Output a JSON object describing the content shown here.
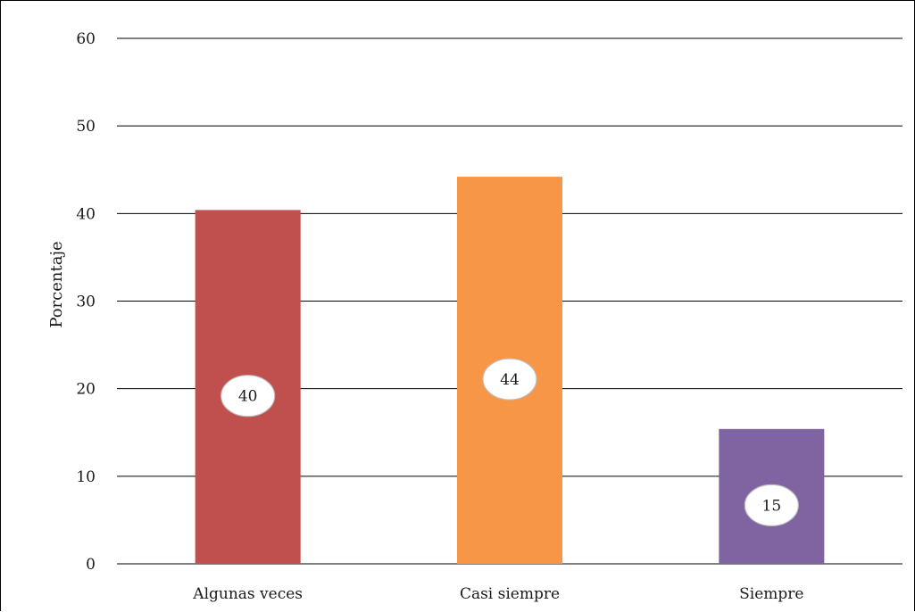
{
  "chart_data": {
    "type": "bar",
    "title": "",
    "xlabel": "",
    "ylabel": "Porcentaje",
    "categories": [
      "Algunas veces",
      "Casi siempre",
      "Siempre"
    ],
    "values": [
      40.4,
      44.2,
      15.4
    ],
    "data_labels": [
      "40",
      "44",
      "15"
    ],
    "colors": [
      "#c0504d",
      "#f79646",
      "#8064a2"
    ],
    "ylim": [
      0,
      60
    ],
    "yticks": [
      "0",
      "10",
      "20",
      "30",
      "40",
      "50",
      "60"
    ],
    "grid": true,
    "legend": "none"
  }
}
